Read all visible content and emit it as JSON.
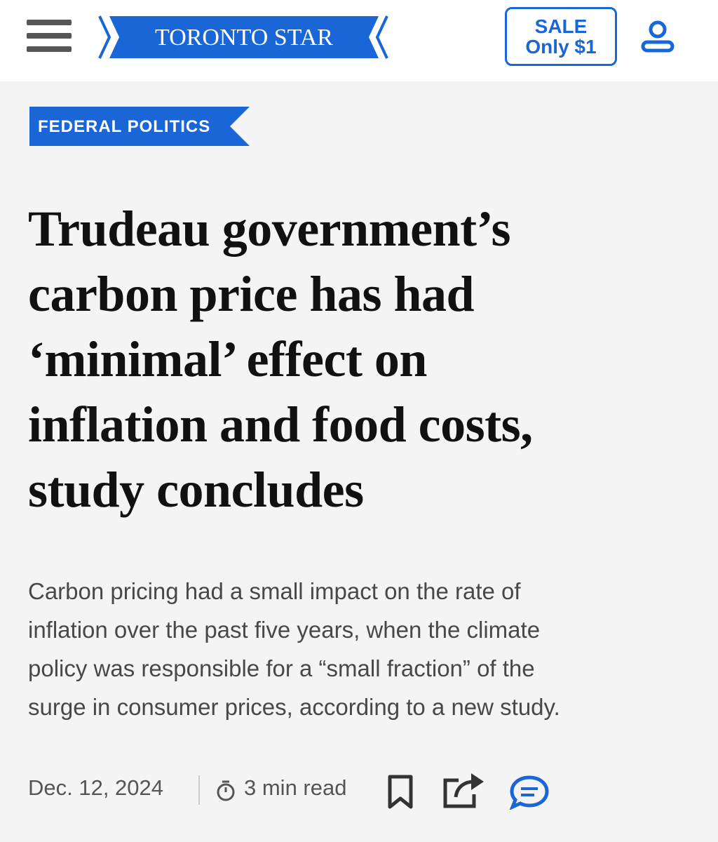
{
  "header": {
    "logo": "TORONTO STAR",
    "sale": {
      "line1": "SALE",
      "line2": "Only $1"
    }
  },
  "article": {
    "section": "FEDERAL POLITICS",
    "headline": [
      "Trudeau government’s",
      "carbon price has had",
      "‘minimal’ effect on",
      "inflation and food costs,",
      "study concludes"
    ],
    "dek": [
      "Carbon pricing had a small impact on the rate of",
      "inflation over the past five years, when the climate",
      "policy was responsible for a “small fraction” of the",
      "surge in consumer prices, according to a new study."
    ],
    "date": "Dec. 12, 2024",
    "read_time": "3 min read"
  }
}
